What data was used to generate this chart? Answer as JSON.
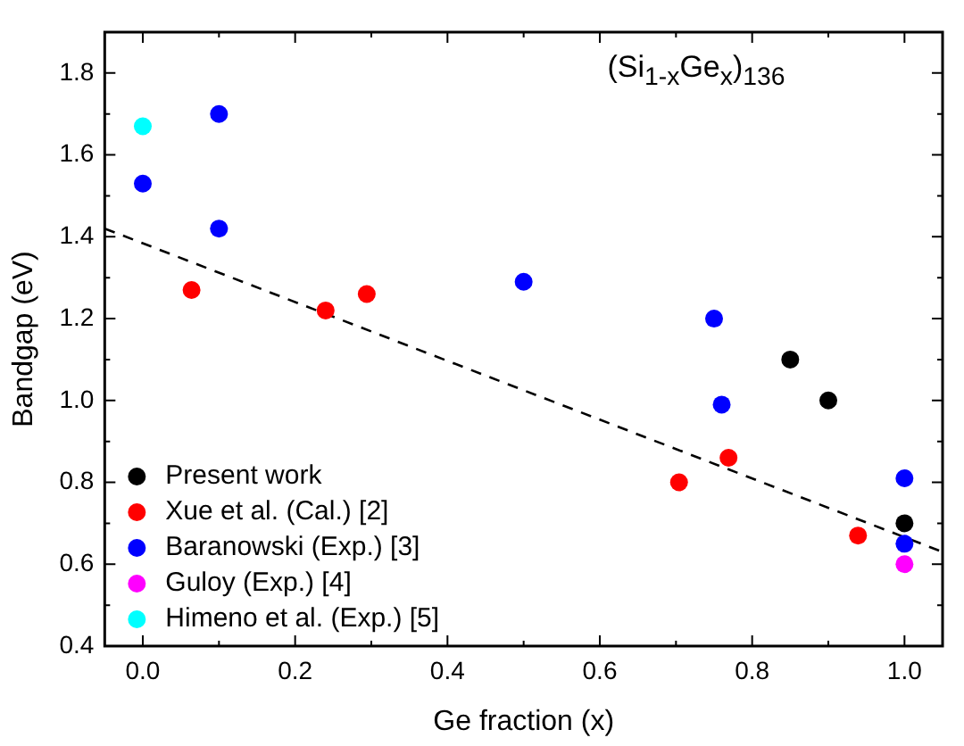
{
  "chart_data": {
    "type": "scatter",
    "xlabel": "Ge fraction (x)",
    "ylabel": "Bandgap (eV)",
    "annotations": [
      "(Si$_{1-x}$Ge$_{x}$)$_{136}$"
    ],
    "xlim": [
      -0.05,
      1.05
    ],
    "xticks": [
      {
        "value": 0,
        "label": "0.0"
      },
      0.2,
      0.4,
      0.6,
      0.8,
      {
        "value": 1,
        "label": "1.0"
      }
    ],
    "ylim": [
      0.4,
      1.9
    ],
    "yticks": [
      0.4,
      0.6,
      0.8,
      {
        "value": 1,
        "label": "1.0"
      },
      1.2,
      1.4,
      1.6,
      1.8
    ],
    "grid": false,
    "legend": "bottom left",
    "marker": "circle",
    "series": [
      {
        "name": "Present work",
        "color": "#000000",
        "x": [
          0.85,
          0.9,
          1.0
        ],
        "values": [
          1.1,
          1.0,
          0.7
        ]
      },
      {
        "name": "Xue et al. (Cal.) [2]",
        "color": "#ff0000",
        "x": [
          0.064,
          0.24,
          0.294,
          0.704,
          0.769,
          0.939
        ],
        "values": [
          1.27,
          1.22,
          1.26,
          0.8,
          0.86,
          0.67
        ]
      },
      {
        "name": "Baranowski (Exp.) [3]",
        "color": "#0000ff",
        "x": [
          0,
          0.1,
          0.1,
          0.5,
          0.75,
          0.76,
          1.0,
          1.0
        ],
        "values": [
          1.53,
          1.7,
          1.42,
          1.29,
          1.2,
          0.99,
          0.81,
          0.65
        ]
      },
      {
        "name": "Guloy (Exp.) [4]",
        "color": "#ff00ff",
        "x": [
          1.0
        ],
        "values": [
          0.6
        ]
      },
      {
        "name": "Himeno et al. (Exp.) [5]",
        "color": "#00ffff",
        "x": [
          0
        ],
        "values": [
          1.67
        ]
      },
      {
        "type": "line",
        "color": "#000000",
        "line_style": "dashed",
        "marker": "none",
        "x": [
          -0.05,
          1.05
        ],
        "values": [
          1.42,
          0.63
        ]
      }
    ]
  }
}
